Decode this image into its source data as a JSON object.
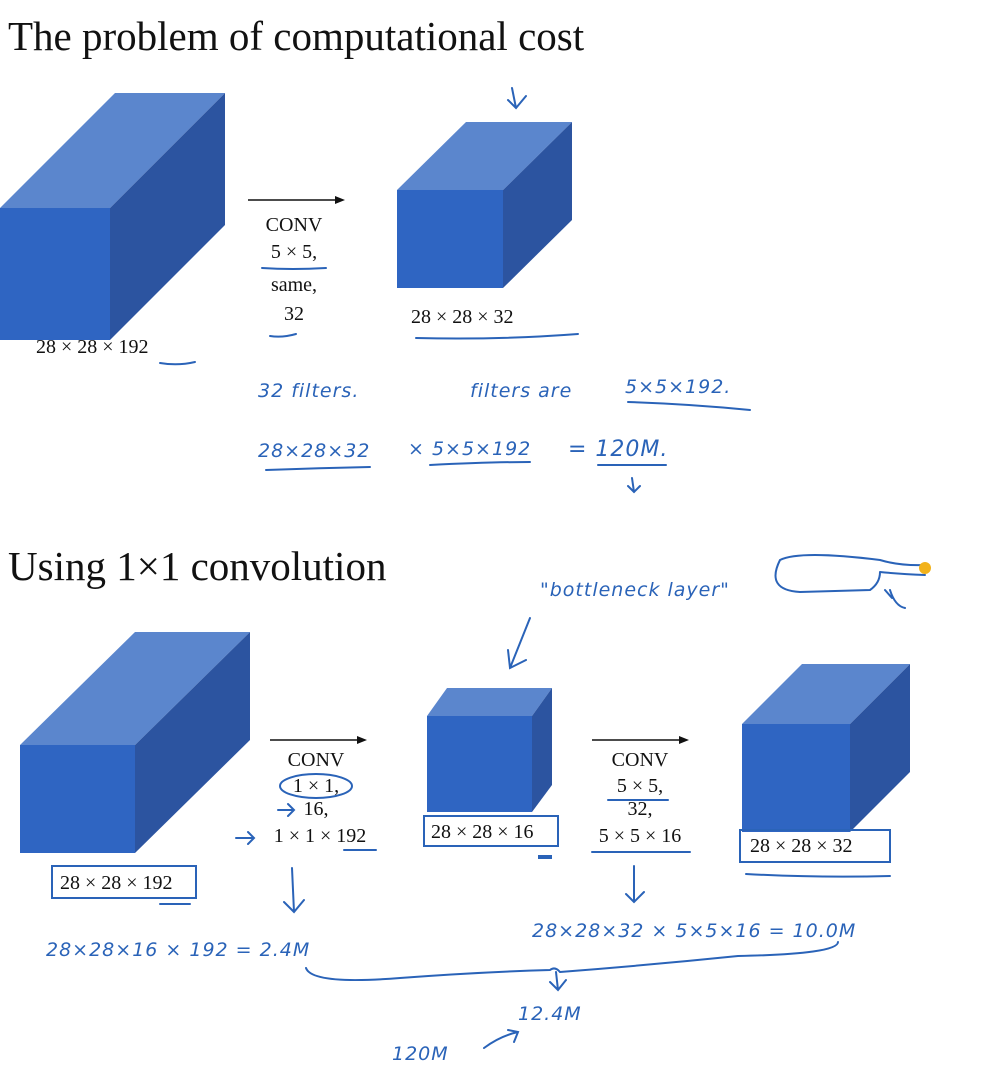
{
  "section1": {
    "title": "The problem of computational cost",
    "input_label": "28 × 28 × 192",
    "conv": [
      "CONV",
      "5 × 5,",
      "same,",
      "32"
    ],
    "output_label": "28 × 28 × 32",
    "notes": {
      "filters": "32 filters.",
      "filters_are": "filters are",
      "filter_size": "5×5×192.",
      "calc_a": "28×28×32",
      "calc_b": "× 5×5×192",
      "calc_result": "= 120M."
    }
  },
  "section2": {
    "title": "Using 1×1 convolution",
    "bottleneck": "\"bottleneck layer\"",
    "input_label": "28 × 28 × 192",
    "conv1": [
      "CONV",
      "1 × 1,",
      "16,",
      "1 × 1 × 192"
    ],
    "middle_label": "28 × 28 × 16",
    "conv2": [
      "CONV",
      "5 × 5,",
      "32,",
      "5 × 5 × 16"
    ],
    "output_label": "28 × 28 × 32",
    "notes": {
      "calc1": "28×28×16 × 192 = 2.4M",
      "calc2": "28×28×32 × 5×5×16 = 10.0M",
      "total": "12.4M",
      "compare": "120M"
    }
  },
  "colors": {
    "cube_front": "#2f65c2",
    "cube_top": "#5b86cd",
    "cube_side": "#2c54a0",
    "ink": "#2a63b8"
  }
}
